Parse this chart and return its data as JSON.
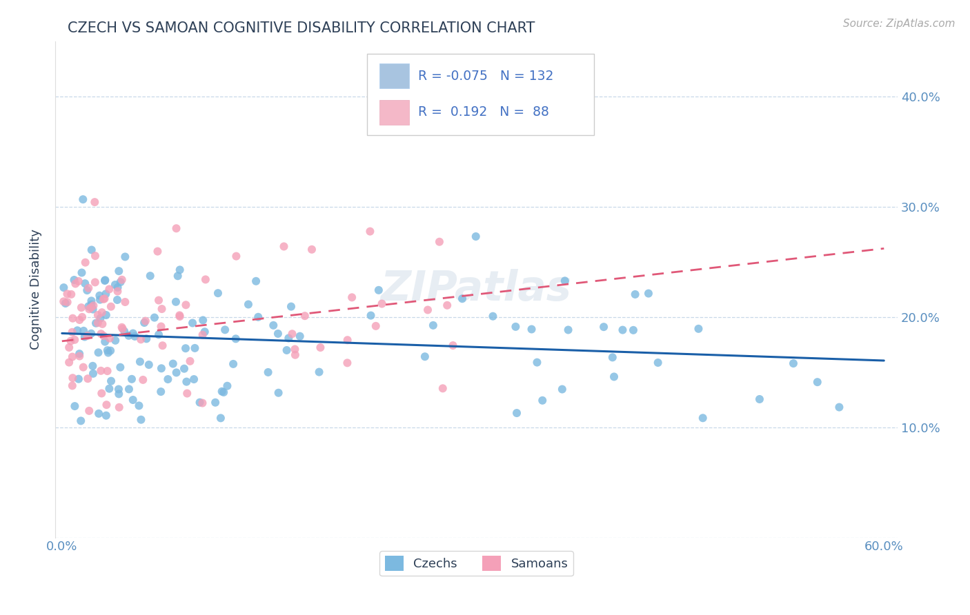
{
  "title": "CZECH VS SAMOAN COGNITIVE DISABILITY CORRELATION CHART",
  "source": "Source: ZipAtlas.com",
  "ylabel": "Cognitive Disability",
  "watermark": "ZIPatlas",
  "czechs_color": "#7cb9e0",
  "samoans_color": "#f4a0b8",
  "czechs_line_color": "#1a5fa8",
  "samoans_line_color": "#e05878",
  "background_color": "#ffffff",
  "grid_color": "#c8d8e8",
  "title_color": "#2e4057",
  "tick_color": "#5a8fc0",
  "legend_box_color": "#a8c4e0",
  "legend_box_color2": "#f4b8c8",
  "legend_text_color": "#4472c4",
  "R_czech": -0.075,
  "N_czech": 132,
  "R_samoan": 0.192,
  "N_samoan": 88
}
